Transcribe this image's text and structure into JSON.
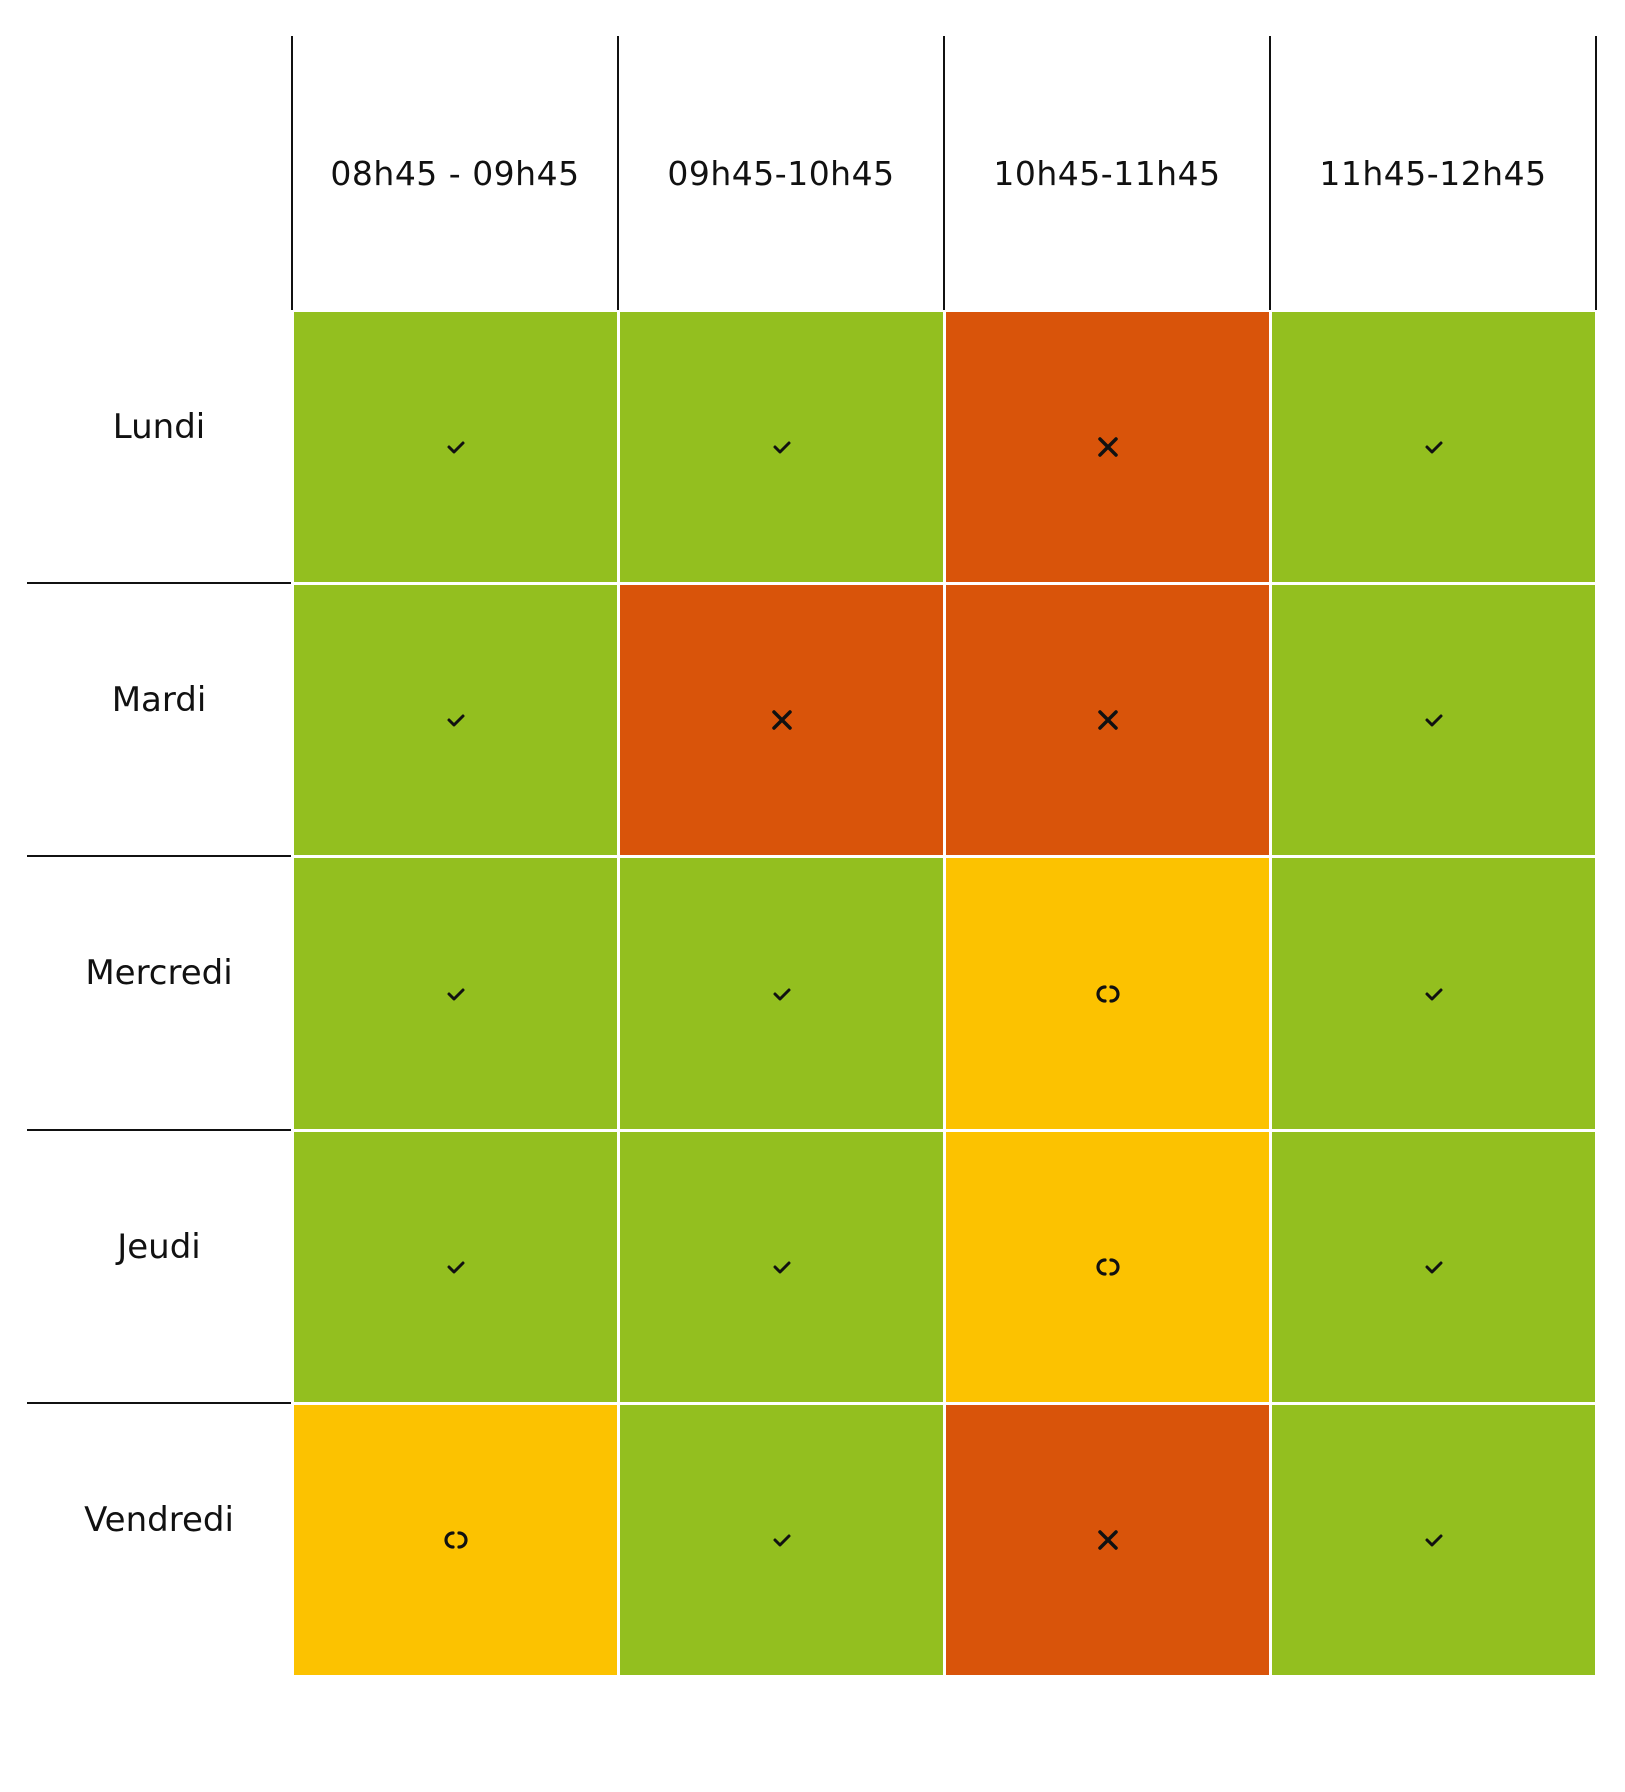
{
  "columns": [
    "08h45 - 09h45",
    "09h45-10h45",
    "10h45-11h45",
    "11h45-12h45"
  ],
  "rows": [
    {
      "day": "Lundi",
      "cells": [
        "check",
        "check",
        "cross",
        "check"
      ]
    },
    {
      "day": "Mardi",
      "cells": [
        "check",
        "cross",
        "cross",
        "check"
      ]
    },
    {
      "day": "Mercredi",
      "cells": [
        "check",
        "check",
        "pending",
        "check"
      ]
    },
    {
      "day": "Jeudi",
      "cells": [
        "check",
        "check",
        "pending",
        "check"
      ]
    },
    {
      "day": "Vendredi",
      "cells": [
        "pending",
        "check",
        "cross",
        "check"
      ]
    }
  ],
  "statuses": {
    "check": {
      "color": "#93bf1f",
      "icon": "check-icon"
    },
    "cross": {
      "color": "#d9540a",
      "icon": "cross-icon"
    },
    "pending": {
      "color": "#fcc200",
      "icon": "pending-icon"
    }
  }
}
